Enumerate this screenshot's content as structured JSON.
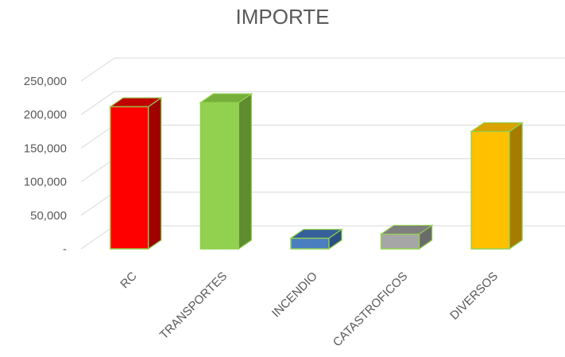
{
  "chart_data": {
    "type": "bar",
    "title": "IMPORTE",
    "categories": [
      "RC",
      "TRANSPORTES",
      "INCENDIO",
      "CATASTROFICOS",
      "DIVERSOS"
    ],
    "values": [
      212000,
      218000,
      16000,
      22000,
      175000
    ],
    "ylim": [
      0,
      250000
    ],
    "yticks": [
      0,
      50000,
      100000,
      150000,
      200000,
      250000
    ],
    "ytick_labels": [
      "-",
      "50,000",
      "100,000",
      "150,000",
      "200,000",
      "250,000"
    ],
    "grid": true,
    "style": "3d-column",
    "colors": {
      "RC": {
        "front": "#ff0000",
        "top": "#c00000",
        "side": "#a00000",
        "edge": "#92d050"
      },
      "TRANSPORTES": {
        "front": "#92d050",
        "top": "#76b03a",
        "side": "#5e8c2e",
        "edge": "#92d050"
      },
      "INCENDIO": {
        "front": "#4a7fc1",
        "top": "#35609a",
        "side": "#2a4f80",
        "edge": "#92d050"
      },
      "CATASTROFICOS": {
        "front": "#a6a6a6",
        "top": "#7f7f7f",
        "side": "#6b6b6b",
        "edge": "#92d050"
      },
      "DIVERSOS": {
        "front": "#ffc000",
        "top": "#d9a300",
        "side": "#a67c00",
        "edge": "#92d050"
      }
    }
  }
}
